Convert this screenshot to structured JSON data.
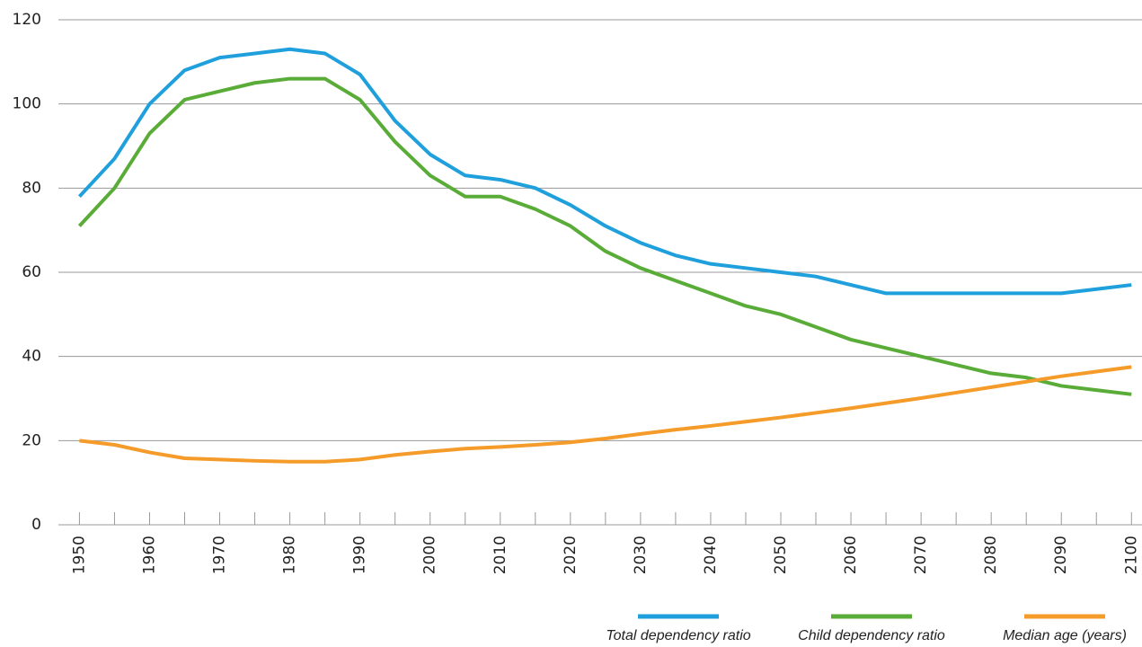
{
  "chart_data": {
    "type": "line",
    "x": [
      1950,
      1955,
      1960,
      1965,
      1970,
      1975,
      1980,
      1985,
      1990,
      1995,
      2000,
      2005,
      2010,
      2015,
      2020,
      2025,
      2030,
      2035,
      2040,
      2045,
      2050,
      2055,
      2060,
      2065,
      2070,
      2075,
      2080,
      2085,
      2090,
      2095,
      2100
    ],
    "series": [
      {
        "name": "Total dependency ratio",
        "color": "#1fa0dc",
        "values": [
          78,
          87,
          100,
          108,
          111,
          112,
          113,
          112,
          107,
          96,
          88,
          83,
          82,
          80,
          76,
          71,
          67,
          64,
          62,
          61,
          60,
          59,
          57,
          55,
          55,
          55,
          55,
          55,
          55,
          56,
          57
        ]
      },
      {
        "name": "Child dependency ratio",
        "color": "#5aac38",
        "values": [
          71,
          80,
          93,
          101,
          103,
          105,
          106,
          106,
          101,
          91,
          83,
          78,
          78,
          75,
          71,
          65,
          61,
          58,
          55,
          52,
          50,
          47,
          44,
          42,
          40,
          38,
          36,
          35,
          33,
          32,
          31
        ]
      },
      {
        "name": "Median age (years)",
        "color": "#f49b2a",
        "values": [
          20,
          19,
          17.2,
          15.8,
          15.5,
          15.2,
          15,
          15,
          15.5,
          16.6,
          17.4,
          18.1,
          18.5,
          19,
          19.6,
          20.5,
          21.6,
          22.6,
          23.5,
          24.5,
          25.5,
          26.6,
          27.7,
          28.9,
          30.1,
          31.4,
          32.7,
          34,
          35.3,
          36.4,
          37.5
        ]
      }
    ],
    "xlim": [
      1947,
      2101.5
    ],
    "xticks": [
      1950,
      1960,
      1970,
      1980,
      1990,
      2000,
      2010,
      2020,
      2030,
      2040,
      2050,
      2060,
      2070,
      2080,
      2090,
      2100
    ],
    "ylim": [
      0,
      120
    ],
    "yticks": [
      0,
      20,
      40,
      60,
      80,
      100,
      120
    ],
    "grid": true
  }
}
